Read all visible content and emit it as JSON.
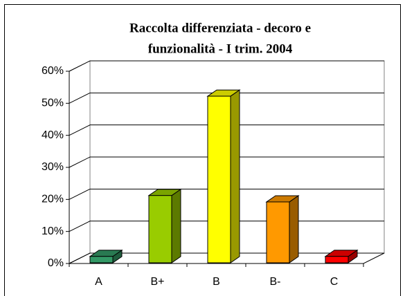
{
  "chart_data": {
    "type": "bar3d",
    "title": [
      "Raccolta differenziata - decoro e",
      "funzionalità - I trim. 2004"
    ],
    "categories": [
      "A",
      "B+",
      "B",
      "B-",
      "C"
    ],
    "values": [
      2,
      21,
      52,
      19,
      2
    ],
    "colors": [
      "#339966",
      "#99cc00",
      "#ffff00",
      "#ff9900",
      "#ff0000"
    ],
    "ylim": [
      0,
      60
    ],
    "yticks": [
      {
        "value": 0,
        "label": "0%"
      },
      {
        "value": 10,
        "label": "10%"
      },
      {
        "value": 20,
        "label": "20%"
      },
      {
        "value": 30,
        "label": "30%"
      },
      {
        "value": 40,
        "label": "40%"
      },
      {
        "value": 50,
        "label": "50%"
      },
      {
        "value": 60,
        "label": "60%"
      }
    ],
    "grid": true
  }
}
